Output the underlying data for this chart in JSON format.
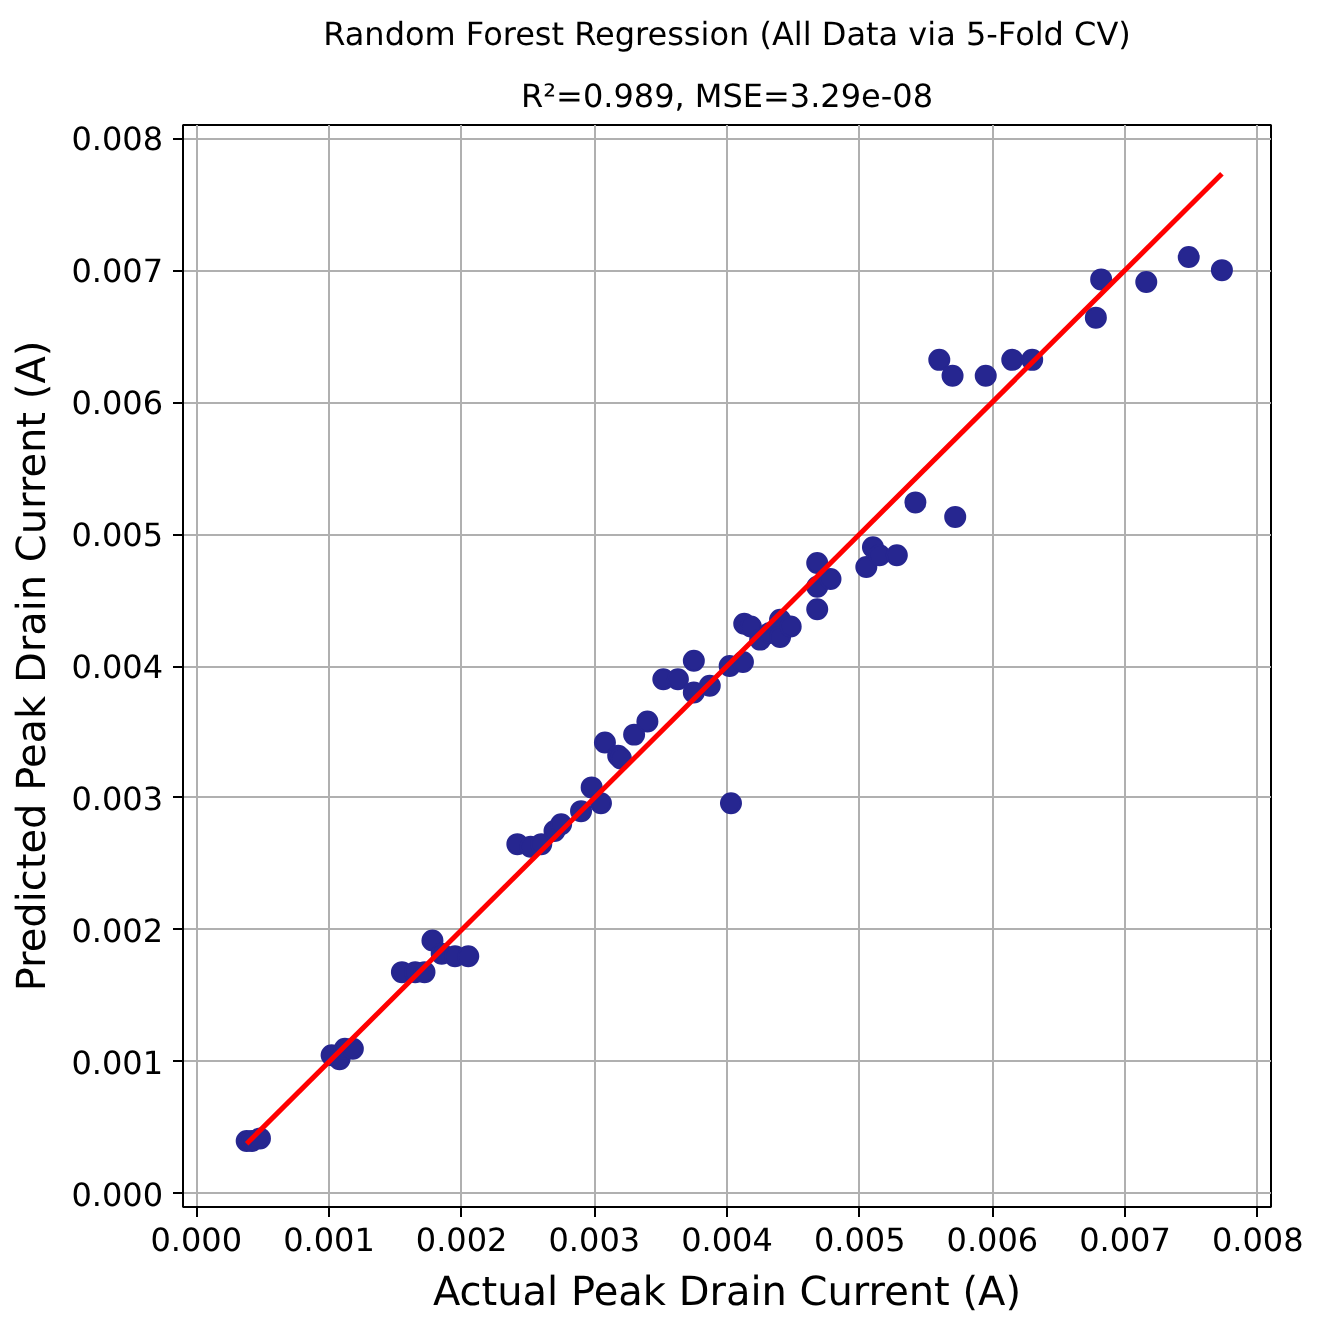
{
  "chart_data": {
    "type": "scatter",
    "title": "Random Forest Regression (All Data via 5-Fold CV)",
    "subtitle": "R²=0.989, MSE=3.29e-08",
    "xlabel": "Actual Peak Drain Current (A)",
    "ylabel": "Predicted Peak Drain Current (A)",
    "xlim": [
      -0.0001,
      0.0081
    ],
    "ylim": [
      -0.0001,
      0.0081
    ],
    "xticks": [
      {
        "value": 0,
        "label": "0.000"
      },
      {
        "value": 0.001,
        "label": "0.001"
      },
      {
        "value": 0.002,
        "label": "0.002"
      },
      {
        "value": 0.003,
        "label": "0.003"
      },
      {
        "value": 0.004,
        "label": "0.004"
      },
      {
        "value": 0.005,
        "label": "0.005"
      },
      {
        "value": 0.006,
        "label": "0.006"
      },
      {
        "value": 0.007,
        "label": "0.007"
      },
      {
        "value": 0.008,
        "label": "0.008"
      }
    ],
    "yticks": [
      {
        "value": 0,
        "label": "0.000"
      },
      {
        "value": 0.001,
        "label": "0.001"
      },
      {
        "value": 0.002,
        "label": "0.002"
      },
      {
        "value": 0.003,
        "label": "0.003"
      },
      {
        "value": 0.004,
        "label": "0.004"
      },
      {
        "value": 0.005,
        "label": "0.005"
      },
      {
        "value": 0.006,
        "label": "0.006"
      },
      {
        "value": 0.007,
        "label": "0.007"
      },
      {
        "value": 0.008,
        "label": "0.008"
      }
    ],
    "grid": true,
    "series": [
      {
        "marker": "circle",
        "color": "#262690",
        "x": [
          0.00038,
          0.00042,
          0.00048,
          0.00102,
          0.00108,
          0.00112,
          0.00118,
          0.00155,
          0.00165,
          0.00172,
          0.00178,
          0.00185,
          0.00195,
          0.00205,
          0.00242,
          0.00252,
          0.0026,
          0.0027,
          0.00275,
          0.0029,
          0.00298,
          0.00305,
          0.00308,
          0.00318,
          0.0032,
          0.0033,
          0.0034,
          0.00352,
          0.00363,
          0.00375,
          0.00375,
          0.00387,
          0.00403,
          0.00402,
          0.00412,
          0.00413,
          0.00418,
          0.00425,
          0.00432,
          0.0044,
          0.0044,
          0.00448,
          0.00468,
          0.00468,
          0.00468,
          0.00478,
          0.00505,
          0.0051,
          0.00515,
          0.00528,
          0.00542,
          0.0056,
          0.0057,
          0.00572,
          0.00595,
          0.00615,
          0.0063,
          0.00678,
          0.00682,
          0.00716,
          0.00748,
          0.00773
        ],
        "values": [
          0.0004,
          0.0004,
          0.00042,
          0.00105,
          0.00102,
          0.0011,
          0.0011,
          0.00168,
          0.00168,
          0.00168,
          0.00192,
          0.00182,
          0.0018,
          0.0018,
          0.00265,
          0.00263,
          0.00265,
          0.00275,
          0.0028,
          0.0029,
          0.00308,
          0.00296,
          0.00342,
          0.00332,
          0.0033,
          0.00348,
          0.00358,
          0.0039,
          0.0039,
          0.00404,
          0.0038,
          0.00385,
          0.00296,
          0.004,
          0.00403,
          0.00432,
          0.0043,
          0.0042,
          0.00425,
          0.00435,
          0.00422,
          0.0043,
          0.00478,
          0.0046,
          0.00443,
          0.00466,
          0.00475,
          0.0049,
          0.00484,
          0.00484,
          0.00524,
          0.00632,
          0.0062,
          0.00513,
          0.0062,
          0.00632,
          0.00632,
          0.00664,
          0.00693,
          0.00691,
          0.0071,
          0.007
        ]
      },
      {
        "type": "line",
        "color": "#ff0000",
        "x": [
          0.00038,
          0.00773
        ],
        "values": [
          0.00038,
          0.00773
        ]
      }
    ]
  }
}
